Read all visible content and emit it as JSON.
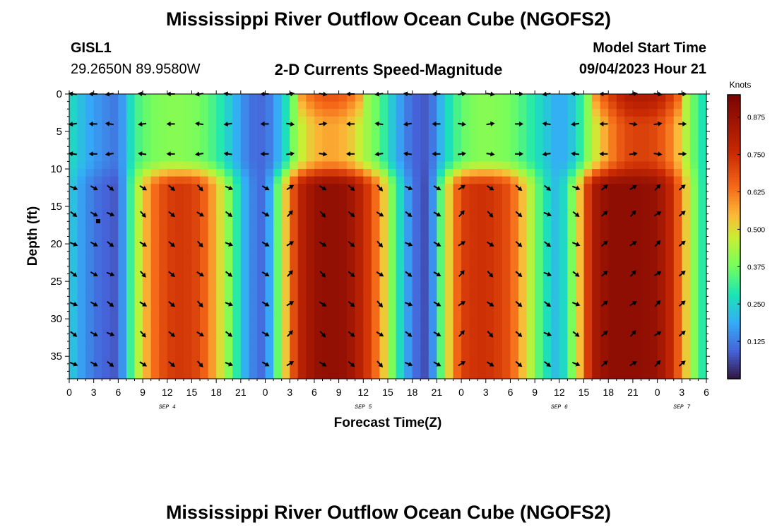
{
  "header": {
    "title": "Mississippi River Outflow Ocean Cube (NGOFS2)",
    "station_id": "GISL1",
    "station_coords": "29.2650N  89.9580W",
    "subtitle": "2-D Currents Speed-Magnitude",
    "start_label": "Model Start Time",
    "start_value": "09/04/2023 Hour 21"
  },
  "footer": {
    "title": "Mississippi River Outflow Ocean Cube (NGOFS2)"
  },
  "chart_data": {
    "type": "heatmap",
    "title": "2-D Currents Speed-Magnitude",
    "xlabel": "Forecast Time(Z)",
    "ylabel": "Depth (ft)",
    "x_range_hours_since_sep4_00z": [
      0,
      78
    ],
    "ylim": [
      38,
      0
    ],
    "x_ticks": [
      {
        "h": 0,
        "label": "0"
      },
      {
        "h": 3,
        "label": "3"
      },
      {
        "h": 6,
        "label": "6"
      },
      {
        "h": 9,
        "label": "9"
      },
      {
        "h": 12,
        "label": "12"
      },
      {
        "h": 15,
        "label": "15"
      },
      {
        "h": 18,
        "label": "18"
      },
      {
        "h": 21,
        "label": "21"
      },
      {
        "h": 24,
        "label": "0"
      },
      {
        "h": 27,
        "label": "3"
      },
      {
        "h": 30,
        "label": "6"
      },
      {
        "h": 33,
        "label": "9"
      },
      {
        "h": 36,
        "label": "12"
      },
      {
        "h": 39,
        "label": "15"
      },
      {
        "h": 42,
        "label": "18"
      },
      {
        "h": 45,
        "label": "21"
      },
      {
        "h": 48,
        "label": "0"
      },
      {
        "h": 51,
        "label": "3"
      },
      {
        "h": 54,
        "label": "6"
      },
      {
        "h": 57,
        "label": "9"
      },
      {
        "h": 60,
        "label": "12"
      },
      {
        "h": 63,
        "label": "15"
      },
      {
        "h": 66,
        "label": "18"
      },
      {
        "h": 69,
        "label": "21"
      },
      {
        "h": 72,
        "label": "0"
      },
      {
        "h": 75,
        "label": "3"
      },
      {
        "h": 78,
        "label": "6"
      }
    ],
    "date_labels": [
      {
        "h": 12,
        "label": "SEP 4"
      },
      {
        "h": 36,
        "label": "SEP 5"
      },
      {
        "h": 60,
        "label": "SEP 6"
      },
      {
        "h": 75,
        "label": "SEP 7"
      }
    ],
    "y_ticks": [
      0,
      5,
      10,
      15,
      20,
      25,
      30,
      35
    ],
    "colorbar": {
      "label": "Knots",
      "ticks": [
        "0.125",
        "0.250",
        "0.375",
        "0.500",
        "0.625",
        "0.750",
        "0.875"
      ],
      "tick_values": [
        0.125,
        0.25,
        0.375,
        0.5,
        0.625,
        0.75,
        0.875
      ],
      "range": [
        0,
        0.95
      ]
    },
    "time_hours": [
      0,
      2,
      4,
      6,
      8,
      10,
      12,
      14,
      16,
      18,
      20,
      22,
      24,
      26,
      28,
      30,
      32,
      34,
      36,
      38,
      40,
      42,
      44,
      46,
      48,
      50,
      52,
      54,
      56,
      58,
      60,
      62,
      64,
      66,
      68,
      70,
      72,
      74,
      76,
      78
    ],
    "speed_profiles": {
      "surface_0_9ft": [
        0.28,
        0.2,
        0.15,
        0.12,
        0.32,
        0.38,
        0.4,
        0.4,
        0.38,
        0.32,
        0.22,
        0.12,
        0.1,
        0.22,
        0.45,
        0.55,
        0.58,
        0.55,
        0.45,
        0.35,
        0.2,
        0.1,
        0.08,
        0.25,
        0.36,
        0.4,
        0.4,
        0.38,
        0.32,
        0.25,
        0.18,
        0.25,
        0.45,
        0.6,
        0.7,
        0.72,
        0.7,
        0.6,
        0.4,
        0.25
      ],
      "subsurface_11_38ft": [
        0.25,
        0.15,
        0.1,
        0.08,
        0.4,
        0.62,
        0.72,
        0.74,
        0.7,
        0.55,
        0.35,
        0.15,
        0.1,
        0.45,
        0.78,
        0.88,
        0.9,
        0.88,
        0.78,
        0.6,
        0.32,
        0.12,
        0.06,
        0.45,
        0.72,
        0.75,
        0.74,
        0.68,
        0.5,
        0.3,
        0.2,
        0.45,
        0.82,
        0.9,
        0.9,
        0.9,
        0.88,
        0.75,
        0.45,
        0.25
      ]
    },
    "vector_rows_ft": [
      0,
      4,
      8,
      12.5,
      16,
      20,
      24,
      28,
      32,
      36
    ],
    "vector_columns_hours": [
      0.5,
      3,
      5,
      9,
      12.5,
      16,
      19.5,
      24,
      27,
      31,
      34.5,
      38,
      41.5,
      45,
      48,
      51.5,
      55,
      58.5,
      62,
      65.5,
      69,
      72,
      75
    ]
  }
}
